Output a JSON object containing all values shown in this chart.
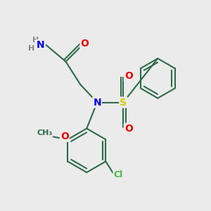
{
  "bg_color": "#ebebeb",
  "bond_color": "#2d6b4a",
  "bond_width": 1.5,
  "atom_colors": {
    "N": "#0000ee",
    "O": "#ee0000",
    "S": "#cccc00",
    "Cl": "#44bb44",
    "H": "#888888",
    "C": "#2d6b4a"
  },
  "font_size": 9,
  "figsize": [
    3.0,
    3.0
  ],
  "dpi": 100,
  "xlim": [
    0,
    10
  ],
  "ylim": [
    0,
    10
  ]
}
